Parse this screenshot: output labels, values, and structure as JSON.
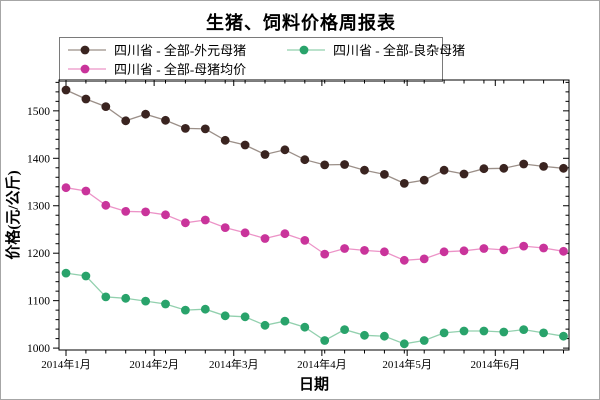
{
  "window": {
    "background": "#ffffff",
    "border_color": "#a6a6a6"
  },
  "chart_data": {
    "type": "line",
    "title": "生猪、饲料价格周报表",
    "xlabel": "日期",
    "ylabel": "价格(元/公斤)",
    "legend_position": "top-left, 2-column box",
    "grid": false,
    "ylim": [
      996,
      1565
    ],
    "y_major_ticks": [
      1000,
      1100,
      1200,
      1300,
      1400,
      1500
    ],
    "y_minor_step": 20,
    "x_month_ticks": [
      {
        "label": "2014年1月",
        "day": 0
      },
      {
        "label": "2014年2月",
        "day": 31
      },
      {
        "label": "2014年3月",
        "day": 59
      },
      {
        "label": "2014年4月",
        "day": 90
      },
      {
        "label": "2014年5月",
        "day": 120
      },
      {
        "label": "2014年6月",
        "day": 151
      }
    ],
    "x_minor_tick_every_days": 7,
    "x_days": [
      0,
      7,
      14,
      21,
      28,
      35,
      42,
      49,
      56,
      63,
      70,
      77,
      84,
      91,
      98,
      105,
      112,
      119,
      126,
      133,
      140,
      147,
      154,
      161,
      168,
      175
    ],
    "series": [
      {
        "name": "四川省 - 全部-外元母猪",
        "marker_color": "#3a2420",
        "line_color": "#9b8f88",
        "values": [
          1544,
          1525,
          1509,
          1479,
          1493,
          1480,
          1463,
          1462,
          1438,
          1428,
          1408,
          1418,
          1397,
          1386,
          1387,
          1375,
          1366,
          1347,
          1354,
          1375,
          1367,
          1378,
          1379,
          1388,
          1383,
          1379
        ]
      },
      {
        "name": "四川省 - 全部-良杂母猪",
        "marker_color": "#29a36b",
        "line_color": "#92d0ae",
        "values": [
          1158,
          1152,
          1108,
          1105,
          1099,
          1093,
          1080,
          1082,
          1068,
          1066,
          1048,
          1057,
          1044,
          1016,
          1039,
          1027,
          1025,
          1009,
          1016,
          1032,
          1036,
          1036,
          1034,
          1039,
          1032,
          1025
        ]
      },
      {
        "name": "四川省 - 全部-母猪均价",
        "marker_color": "#c9349b",
        "line_color": "#ec93c7",
        "values": [
          1338,
          1331,
          1301,
          1288,
          1287,
          1281,
          1264,
          1270,
          1254,
          1243,
          1231,
          1241,
          1227,
          1198,
          1210,
          1206,
          1203,
          1185,
          1188,
          1203,
          1205,
          1210,
          1207,
          1215,
          1211,
          1204
        ]
      }
    ]
  }
}
